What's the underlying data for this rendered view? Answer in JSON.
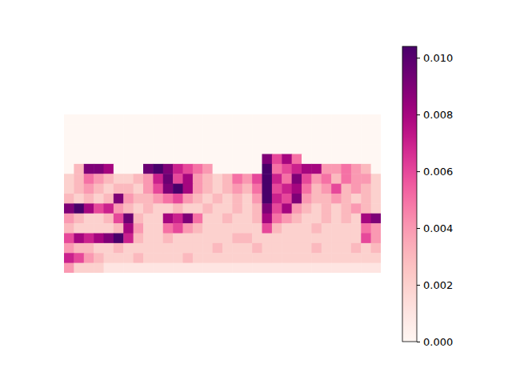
{
  "chart_data": {
    "type": "heatmap",
    "tick_labels": false,
    "colorbar_range": [
      0,
      0.0104
    ],
    "colorbar_ticks": [
      {
        "value": 0,
        "label": "0.000"
      },
      {
        "value": 0.002,
        "label": "0.002"
      },
      {
        "value": 0.004,
        "label": "0.004"
      },
      {
        "value": 0.006,
        "label": "0.006"
      },
      {
        "value": 0.008,
        "label": "0.008"
      },
      {
        "value": 0.01,
        "label": "0.010"
      }
    ],
    "cells": [
      [
        0,
        0,
        0,
        0,
        0,
        0,
        0,
        0,
        0,
        0,
        0,
        0,
        0,
        0,
        0,
        0,
        0,
        0,
        0,
        0,
        0,
        0,
        0,
        0,
        0,
        0,
        0,
        0,
        0,
        0,
        0,
        0
      ],
      [
        0,
        0,
        0,
        0,
        0,
        0,
        0,
        0,
        0,
        0,
        0,
        0,
        0,
        0,
        0,
        0,
        0,
        0,
        0,
        0,
        0,
        0,
        0,
        0,
        0,
        0,
        0,
        0,
        0,
        0,
        0,
        0
      ],
      [
        0,
        0,
        0,
        0,
        0,
        0,
        0,
        0,
        0,
        0,
        0,
        0,
        0,
        0,
        0,
        0,
        0,
        0,
        0,
        0,
        0,
        0,
        0,
        0,
        0,
        0,
        0,
        0,
        0,
        0,
        0,
        0
      ],
      [
        0,
        0,
        0,
        0,
        0,
        0,
        0,
        0,
        0,
        0,
        0,
        0,
        0,
        0,
        0,
        0,
        0,
        0,
        0,
        0,
        0,
        0,
        0,
        0,
        0,
        0,
        0,
        0,
        0,
        0,
        0,
        0
      ],
      [
        0,
        0,
        0,
        0,
        0,
        0,
        0,
        0,
        0,
        0,
        0,
        0,
        0,
        0,
        0,
        0,
        0,
        0,
        0,
        0,
        0.009,
        0.006,
        0.008,
        0.005,
        0,
        0,
        0,
        0,
        0,
        0,
        0,
        0
      ],
      [
        0,
        0.003,
        0.009,
        0.009,
        0.008,
        0,
        0,
        0,
        0.0095,
        0.0104,
        0.009,
        0.007,
        0.006,
        0.005,
        0.004,
        0,
        0,
        0,
        0,
        0,
        0.0104,
        0.005,
        0.006,
        0.007,
        0.008,
        0.008,
        0.004,
        0.004,
        0.005,
        0.004,
        0.003,
        0
      ],
      [
        0.002,
        0.003,
        0.005,
        0.004,
        0.003,
        0.002,
        0.002,
        0.003,
        0.004,
        0.007,
        0.0095,
        0.006,
        0.008,
        0.004,
        0.003,
        0.002,
        0.003,
        0.005,
        0.004,
        0.006,
        0.0104,
        0.007,
        0.005,
        0.009,
        0.006,
        0.004,
        0.005,
        0.003,
        0.005,
        0.004,
        0.004,
        0.002
      ],
      [
        0.002,
        0.003,
        0.004,
        0.003,
        0.002,
        0.003,
        0.003,
        0.002,
        0.004,
        0.006,
        0.009,
        0.0104,
        0.008,
        0.004,
        0.003,
        0.002,
        0.003,
        0.004,
        0.003,
        0.005,
        0.0104,
        0.006,
        0.007,
        0.008,
        0.005,
        0.003,
        0.004,
        0.006,
        0.003,
        0.004,
        0.003,
        0.002
      ],
      [
        0.003,
        0.002,
        0.003,
        0.002,
        0.003,
        0.009,
        0.004,
        0.003,
        0.003,
        0.004,
        0.005,
        0.006,
        0.004,
        0.003,
        0.002,
        0.003,
        0.002,
        0.003,
        0.002,
        0.004,
        0.0104,
        0.007,
        0.006,
        0.009,
        0.004,
        0.003,
        0.003,
        0.004,
        0.003,
        0.002,
        0.003,
        0.002
      ],
      [
        0.009,
        0.0104,
        0.008,
        0.006,
        0.007,
        0.004,
        0.003,
        0.002,
        0.003,
        0.002,
        0.002,
        0.003,
        0.002,
        0.002,
        0.003,
        0.002,
        0.002,
        0.003,
        0.002,
        0.003,
        0.009,
        0.006,
        0.008,
        0.004,
        0.003,
        0.002,
        0.003,
        0.002,
        0.003,
        0.004,
        0.003,
        0.002
      ],
      [
        0.004,
        0.003,
        0.002,
        0.002,
        0.003,
        0.006,
        0.0095,
        0.003,
        0.002,
        0.002,
        0.008,
        0.007,
        0.009,
        0.005,
        0.002,
        0.002,
        0.003,
        0.002,
        0.002,
        0.003,
        0.008,
        0.005,
        0.004,
        0.003,
        0.002,
        0.002,
        0.003,
        0.002,
        0.003,
        0.002,
        0.008,
        0.009
      ],
      [
        0.003,
        0.002,
        0.002,
        0.002,
        0.002,
        0.003,
        0.008,
        0.004,
        0.002,
        0.002,
        0.005,
        0.006,
        0.004,
        0.003,
        0.002,
        0.002,
        0.002,
        0.002,
        0.002,
        0.002,
        0.006,
        0.003,
        0.002,
        0.002,
        0.002,
        0.003,
        0.002,
        0.002,
        0.002,
        0.002,
        0.005,
        0.004
      ],
      [
        0.006,
        0.008,
        0.007,
        0.008,
        0.009,
        0.0104,
        0.007,
        0.003,
        0.002,
        0.002,
        0.003,
        0.002,
        0.002,
        0.002,
        0.002,
        0.002,
        0.002,
        0.003,
        0.003,
        0.002,
        0.002,
        0.002,
        0.002,
        0.002,
        0.002,
        0.002,
        0.002,
        0.002,
        0.002,
        0.002,
        0.006,
        0.004
      ],
      [
        0.004,
        0.003,
        0.003,
        0.002,
        0.002,
        0.003,
        0.002,
        0.002,
        0.002,
        0.002,
        0.002,
        0.002,
        0.002,
        0.002,
        0.002,
        0.003,
        0.002,
        0.002,
        0.002,
        0.003,
        0.002,
        0.002,
        0.002,
        0.002,
        0.002,
        0.003,
        0.002,
        0.002,
        0.002,
        0.003,
        0.002,
        0.003
      ],
      [
        0.007,
        0.006,
        0.004,
        0.003,
        0.002,
        0.002,
        0.002,
        0.003,
        0.002,
        0.002,
        0.002,
        0.002,
        0.003,
        0.002,
        0.002,
        0.002,
        0.002,
        0.002,
        0.002,
        0.002,
        0.002,
        0.002,
        0.002,
        0.002,
        0.002,
        0.002,
        0.002,
        0.002,
        0.002,
        0.002,
        0.002,
        0.002
      ],
      [
        0.004,
        0.002,
        0.002,
        0.002,
        0.001,
        0.001,
        0.001,
        0.001,
        0.001,
        0.001,
        0.001,
        0.001,
        0.001,
        0.001,
        0.001,
        0.001,
        0.001,
        0.001,
        0.001,
        0.001,
        0.001,
        0.001,
        0.001,
        0.001,
        0.001,
        0.001,
        0.001,
        0.001,
        0.001,
        0.001,
        0.001,
        0.001
      ]
    ]
  }
}
